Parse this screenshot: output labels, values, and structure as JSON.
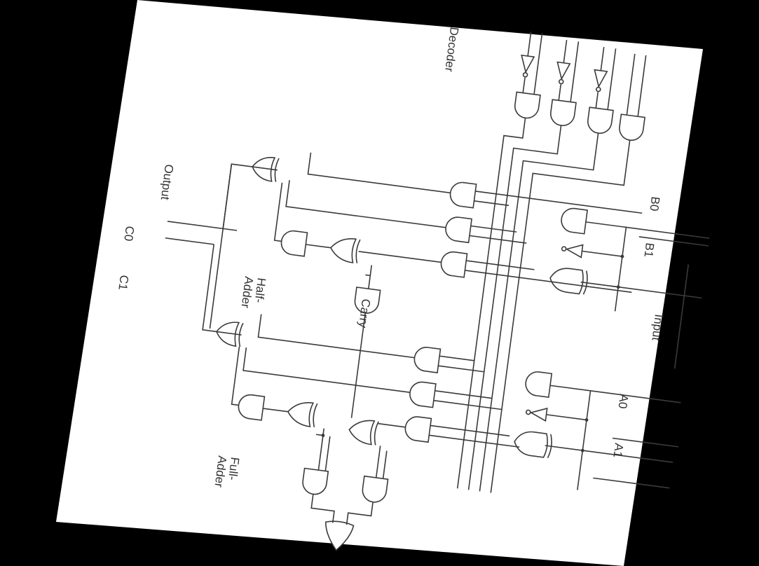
{
  "labels": {
    "decoder": "Decoder",
    "output": "Output",
    "c0": "C0",
    "c1": "C1",
    "half_adder_line1": "Half-",
    "half_adder_line2": "Adder",
    "carry": "Carry",
    "full_adder_line1": "Full-",
    "full_adder_line2": "Adder",
    "input": "Input",
    "b0": "B0",
    "b1": "B1",
    "a0": "A0",
    "a1": "A1"
  },
  "colors": {
    "paper": "#ffffff",
    "background": "#000000",
    "ink": "#3a3a3a"
  }
}
